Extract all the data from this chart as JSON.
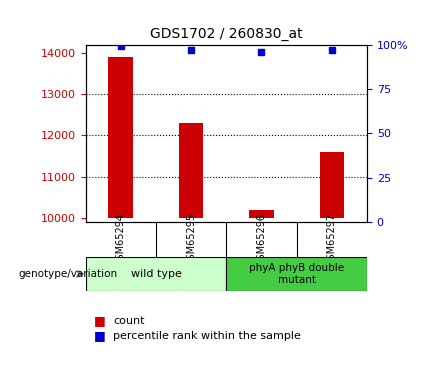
{
  "title": "GDS1702 / 260830_at",
  "samples": [
    "GSM65294",
    "GSM65295",
    "GSM65296",
    "GSM65297"
  ],
  "counts": [
    13900,
    12300,
    10200,
    11600
  ],
  "percentiles": [
    99,
    97,
    96,
    97
  ],
  "ylim_left": [
    9900,
    14200
  ],
  "ylim_right": [
    0,
    100
  ],
  "yticks_left": [
    10000,
    11000,
    12000,
    13000,
    14000
  ],
  "yticks_right": [
    0,
    25,
    50,
    75,
    100
  ],
  "bar_color": "#cc0000",
  "marker_color": "#0000cc",
  "bar_width": 0.35,
  "groups": [
    {
      "label": "wild type",
      "samples": [
        0,
        1
      ],
      "color": "#ccffcc"
    },
    {
      "label": "phyA phyB double\nmutant",
      "samples": [
        2,
        3
      ],
      "color": "#44cc44"
    }
  ],
  "genotype_label": "genotype/variation",
  "legend_count_label": "count",
  "legend_percentile_label": "percentile rank within the sample",
  "background_color": "#ffffff",
  "plot_bg_color": "#ffffff",
  "tick_color_left": "#cc0000",
  "tick_color_right": "#0000cc",
  "sample_box_color": "#cccccc",
  "baseline": 10000
}
